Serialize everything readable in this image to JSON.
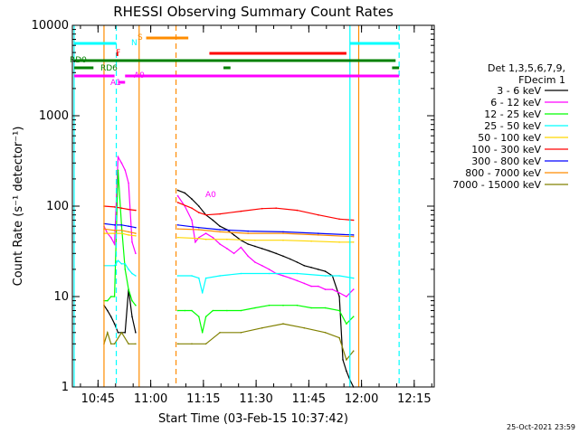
{
  "chart_data": {
    "type": "line",
    "title": "RHESSI Observing Summary Count Rates",
    "xlabel": "Start Time (03-Feb-15 10:37:42)",
    "ylabel": "Count Rate (s⁻¹ detector⁻¹)",
    "yscale": "log",
    "ylim": [
      1,
      10000
    ],
    "xlim_minutes_after_10_37_42": [
      0,
      103
    ],
    "x_ticks": [
      "10:45",
      "11:00",
      "11:15",
      "11:30",
      "11:45",
      "12:00",
      "12:15"
    ],
    "y_ticks": [
      "1",
      "10",
      "100",
      "1000",
      "10000"
    ],
    "timestamp": "25-Oct-2021 23:59",
    "legend": {
      "position": "right",
      "header": [
        "Det 1,3,5,6,7,9,",
        "FDecim 1"
      ],
      "entries": [
        {
          "label": "3 - 6 keV",
          "color": "#000000"
        },
        {
          "label": "6 - 12 keV",
          "color": "#ff00ff"
        },
        {
          "label": "12 - 25 keV",
          "color": "#00ff00"
        },
        {
          "label": "25 - 50 keV",
          "color": "#00ffff"
        },
        {
          "label": "50 - 100 keV",
          "color": "#ffd700"
        },
        {
          "label": "100 - 300 keV",
          "color": "#ff0000"
        },
        {
          "label": "300 - 800 keV",
          "color": "#0000ff"
        },
        {
          "label": "800 - 7000 keV",
          "color": "#ff8c00"
        },
        {
          "label": "7000 - 15000 keV",
          "color": "#808000"
        }
      ]
    },
    "flags": [
      {
        "label": "N",
        "color": "#00ffff"
      },
      {
        "label": "S",
        "color": "#ff8c00"
      },
      {
        "label": "F",
        "color": "#ff0000"
      },
      {
        "label": "RD0",
        "color": "#008000"
      },
      {
        "label": "RD6",
        "color": "#008000"
      },
      {
        "label": "A0",
        "color": "#ff00ff"
      },
      {
        "label": "A1",
        "color": "#ff00ff"
      },
      {
        "label": "A0",
        "color": "#ff00ff"
      }
    ],
    "series": [
      {
        "name": "3 - 6 keV",
        "color": "#000000",
        "segments": [
          [
            [
              9,
              8
            ],
            [
              10,
              7
            ],
            [
              11,
              6
            ],
            [
              12,
              5
            ],
            [
              13,
              4
            ],
            [
              14,
              4
            ],
            [
              15,
              4
            ],
            [
              16,
              12
            ],
            [
              17,
              6
            ],
            [
              18,
              4
            ]
          ],
          [
            [
              30,
              150
            ],
            [
              32,
              140
            ],
            [
              34,
              120
            ],
            [
              36,
              100
            ],
            [
              38,
              80
            ],
            [
              40,
              70
            ],
            [
              42,
              60
            ],
            [
              44,
              55
            ],
            [
              46,
              48
            ],
            [
              48,
              42
            ],
            [
              50,
              38
            ],
            [
              52,
              36
            ],
            [
              54,
              34
            ],
            [
              56,
              32
            ],
            [
              58,
              30
            ],
            [
              60,
              28
            ],
            [
              62,
              26
            ],
            [
              64,
              24
            ],
            [
              66,
              22
            ],
            [
              68,
              21
            ],
            [
              70,
              20
            ],
            [
              72,
              19
            ],
            [
              74,
              17
            ],
            [
              76,
              10
            ],
            [
              77,
              2
            ],
            [
              78,
              1.5
            ],
            [
              79,
              1.2
            ],
            [
              80,
              1
            ]
          ]
        ]
      },
      {
        "name": "6 - 12 keV",
        "color": "#ff00ff",
        "segments": [
          [
            [
              9,
              60
            ],
            [
              10,
              50
            ],
            [
              11,
              45
            ],
            [
              12,
              38
            ],
            [
              13,
              350
            ],
            [
              14,
              300
            ],
            [
              15,
              250
            ],
            [
              16,
              180
            ],
            [
              17,
              40
            ],
            [
              18,
              30
            ]
          ],
          [
            [
              30,
              130
            ],
            [
              32,
              100
            ],
            [
              34,
              70
            ],
            [
              35,
              40
            ],
            [
              36,
              45
            ],
            [
              38,
              50
            ],
            [
              40,
              45
            ],
            [
              42,
              38
            ],
            [
              44,
              34
            ],
            [
              46,
              30
            ],
            [
              48,
              35
            ],
            [
              50,
              28
            ],
            [
              52,
              24
            ],
            [
              54,
              22
            ],
            [
              56,
              20
            ],
            [
              58,
              18
            ],
            [
              60,
              17
            ],
            [
              62,
              16
            ],
            [
              64,
              15
            ],
            [
              66,
              14
            ],
            [
              68,
              13
            ],
            [
              70,
              13
            ],
            [
              72,
              12
            ],
            [
              74,
              12
            ],
            [
              76,
              11
            ],
            [
              78,
              10
            ],
            [
              80,
              12
            ]
          ]
        ]
      },
      {
        "name": "12 - 25 keV",
        "color": "#00ff00",
        "segments": [
          [
            [
              9,
              9
            ],
            [
              10,
              9
            ],
            [
              11,
              10
            ],
            [
              12,
              10
            ],
            [
              13,
              250
            ],
            [
              14,
              60
            ],
            [
              15,
              20
            ],
            [
              16,
              12
            ],
            [
              17,
              9
            ],
            [
              18,
              8
            ]
          ],
          [
            [
              30,
              7
            ],
            [
              32,
              7
            ],
            [
              34,
              7
            ],
            [
              36,
              6
            ],
            [
              37,
              4
            ],
            [
              38,
              6
            ],
            [
              40,
              7
            ],
            [
              44,
              7
            ],
            [
              48,
              7
            ],
            [
              52,
              7.5
            ],
            [
              56,
              8
            ],
            [
              60,
              8
            ],
            [
              64,
              8
            ],
            [
              68,
              7.5
            ],
            [
              72,
              7.5
            ],
            [
              76,
              7
            ],
            [
              78,
              5
            ],
            [
              80,
              6
            ]
          ]
        ]
      },
      {
        "name": "25 - 50 keV",
        "color": "#00ffff",
        "segments": [
          [
            [
              9,
              22
            ],
            [
              12,
              22
            ],
            [
              13,
              25
            ],
            [
              14,
              23
            ],
            [
              15,
              23
            ],
            [
              16,
              20
            ],
            [
              17,
              18
            ],
            [
              18,
              17
            ]
          ],
          [
            [
              30,
              17
            ],
            [
              34,
              17
            ],
            [
              36,
              16
            ],
            [
              37,
              11
            ],
            [
              38,
              16
            ],
            [
              42,
              17
            ],
            [
              48,
              18
            ],
            [
              56,
              18
            ],
            [
              64,
              18
            ],
            [
              72,
              17
            ],
            [
              76,
              17
            ],
            [
              80,
              16
            ]
          ]
        ]
      },
      {
        "name": "50 - 100 keV",
        "color": "#ffd700",
        "segments": [
          [
            [
              9,
              50
            ],
            [
              12,
              50
            ],
            [
              14,
              50
            ],
            [
              16,
              48
            ],
            [
              18,
              47
            ]
          ],
          [
            [
              30,
              45
            ],
            [
              36,
              44
            ],
            [
              38,
              43
            ],
            [
              44,
              43
            ],
            [
              52,
              42
            ],
            [
              60,
              42
            ],
            [
              68,
              41
            ],
            [
              76,
              40
            ],
            [
              80,
              40
            ]
          ]
        ]
      },
      {
        "name": "100 - 300 keV",
        "color": "#ff0000",
        "segments": [
          [
            [
              9,
              100
            ],
            [
              12,
              98
            ],
            [
              14,
              95
            ],
            [
              16,
              92
            ],
            [
              18,
              90
            ]
          ],
          [
            [
              30,
              110
            ],
            [
              34,
              95
            ],
            [
              36,
              85
            ],
            [
              38,
              80
            ],
            [
              42,
              82
            ],
            [
              48,
              88
            ],
            [
              54,
              94
            ],
            [
              58,
              95
            ],
            [
              64,
              90
            ],
            [
              70,
              80
            ],
            [
              76,
              72
            ],
            [
              80,
              70
            ]
          ]
        ]
      },
      {
        "name": "300 - 800 keV",
        "color": "#0000ff",
        "segments": [
          [
            [
              9,
              64
            ],
            [
              12,
              62
            ],
            [
              14,
              62
            ],
            [
              16,
              60
            ],
            [
              18,
              58
            ]
          ],
          [
            [
              30,
              62
            ],
            [
              36,
              58
            ],
            [
              42,
              55
            ],
            [
              50,
              53
            ],
            [
              60,
              52
            ],
            [
              70,
              50
            ],
            [
              80,
              48
            ]
          ]
        ]
      },
      {
        "name": "800 - 7000 keV",
        "color": "#ff8c00",
        "segments": [
          [
            [
              9,
              56
            ],
            [
              12,
              54
            ],
            [
              14,
              54
            ],
            [
              16,
              52
            ],
            [
              18,
              50
            ]
          ],
          [
            [
              30,
              56
            ],
            [
              36,
              55
            ],
            [
              42,
              52
            ],
            [
              50,
              50
            ],
            [
              60,
              50
            ],
            [
              70,
              48
            ],
            [
              80,
              46
            ]
          ]
        ]
      },
      {
        "name": "7000 - 15000 keV",
        "color": "#808000",
        "segments": [
          [
            [
              9,
              3
            ],
            [
              10,
              4
            ],
            [
              11,
              3
            ],
            [
              12,
              3
            ],
            [
              14,
              4
            ],
            [
              16,
              3
            ],
            [
              18,
              3
            ]
          ],
          [
            [
              30,
              3
            ],
            [
              34,
              3
            ],
            [
              38,
              3
            ],
            [
              42,
              4
            ],
            [
              48,
              4
            ],
            [
              54,
              4.5
            ],
            [
              60,
              5
            ],
            [
              66,
              4.5
            ],
            [
              72,
              4
            ],
            [
              76,
              3.5
            ],
            [
              78,
              2
            ],
            [
              80,
              2.5
            ]
          ]
        ]
      }
    ]
  }
}
